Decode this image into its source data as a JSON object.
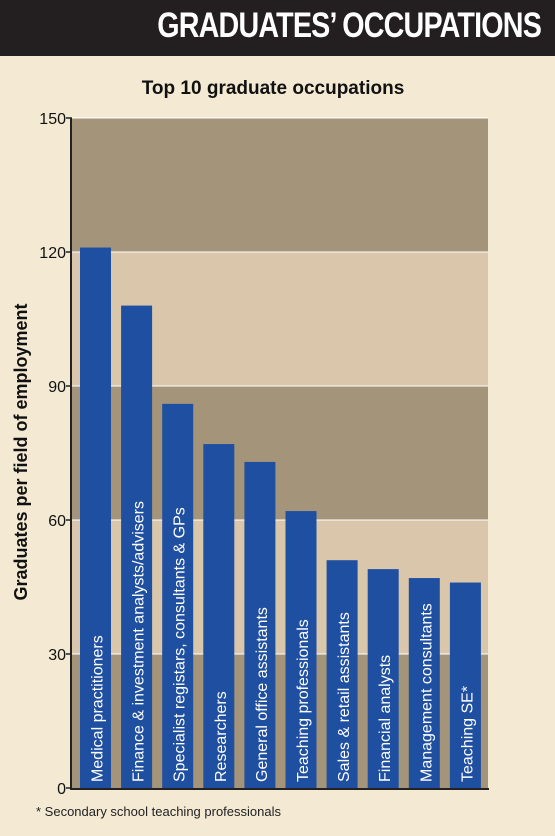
{
  "header": {
    "title": "GRADUATES’ OCCUPATIONS"
  },
  "footnote": "* Secondary school teaching professionals",
  "colors": {
    "header_bg": "#231f20",
    "band_dark": "#a4947a",
    "band_light": "#d9c6ab",
    "bar": "#1f4fa0",
    "page_bg": "#f4ead4"
  },
  "chart_data": {
    "type": "bar",
    "title": "Top 10 graduate occupations",
    "ylabel": "Graduates per field of employment",
    "xlabel": "",
    "ylim": [
      0,
      150
    ],
    "yticks": [
      0,
      30,
      60,
      90,
      120,
      150
    ],
    "categories": [
      "Medical practitioners",
      "Finance & investment analysts/advisers",
      "Specialist registars, consultants & GPs",
      "Researchers",
      "General office assistants",
      "Teaching professionals",
      "Sales & retail assistants",
      "Financial analysts",
      "Management consultants",
      "Teaching SE*"
    ],
    "values": [
      121,
      108,
      86,
      77,
      73,
      62,
      51,
      49,
      47,
      46
    ],
    "grid": true,
    "legend": "none"
  }
}
